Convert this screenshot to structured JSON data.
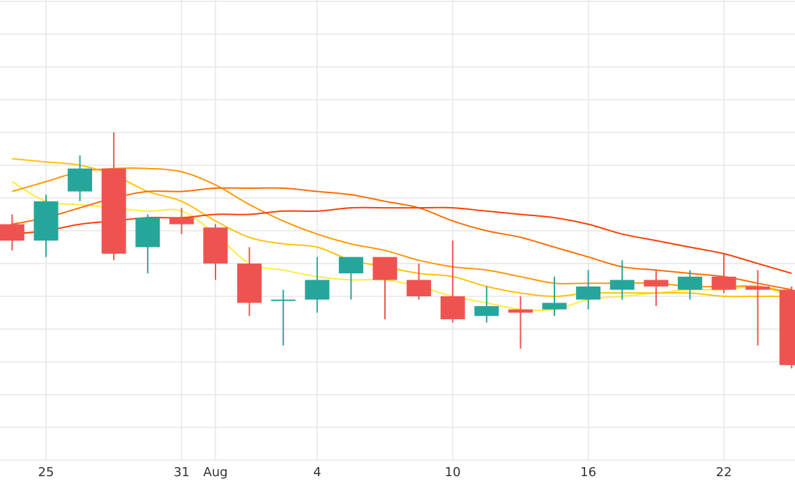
{
  "chart_data": {
    "type": "candlestick",
    "title": "",
    "xlabel": "",
    "ylabel": "",
    "ylim": [
      0,
      14
    ],
    "x_tick_labels": [
      {
        "label": "25",
        "day": 0
      },
      {
        "label": "31",
        "day": 6
      },
      {
        "label": "Aug",
        "day": 7.5
      },
      {
        "label": "4",
        "day": 12
      },
      {
        "label": "10",
        "day": 18
      },
      {
        "label": "16",
        "day": 24
      },
      {
        "label": "22",
        "day": 30
      }
    ],
    "grid": true,
    "colors": {
      "up": "#26a69a",
      "down": "#ef5350",
      "grid": "#e6e6e6",
      "ma_short": "#ffeb3b",
      "ma_mid1": "#ffc107",
      "ma_mid2": "#ff9800",
      "ma_long": "#ff6d00",
      "ma_longest": "#ff3d00"
    },
    "candles": [
      {
        "day": -1.5,
        "open": 7.2,
        "high": 7.5,
        "low": 6.4,
        "close": 6.7
      },
      {
        "day": 0,
        "open": 6.7,
        "high": 8.1,
        "low": 6.2,
        "close": 7.9
      },
      {
        "day": 1.5,
        "open": 8.2,
        "high": 9.3,
        "low": 7.9,
        "close": 8.9
      },
      {
        "day": 3,
        "open": 8.9,
        "high": 10.0,
        "low": 6.1,
        "close": 6.3
      },
      {
        "day": 4.5,
        "open": 6.5,
        "high": 7.5,
        "low": 5.7,
        "close": 7.4
      },
      {
        "day": 6,
        "open": 7.4,
        "high": 7.7,
        "low": 6.9,
        "close": 7.2
      },
      {
        "day": 7.5,
        "open": 7.1,
        "high": 7.2,
        "low": 5.5,
        "close": 6.0
      },
      {
        "day": 9,
        "open": 6.0,
        "high": 6.5,
        "low": 4.4,
        "close": 4.8
      },
      {
        "day": 10.5,
        "open": 4.9,
        "high": 5.2,
        "low": 3.5,
        "close": 4.9
      },
      {
        "day": 12,
        "open": 4.9,
        "high": 6.2,
        "low": 4.5,
        "close": 5.5
      },
      {
        "day": 13.5,
        "open": 5.7,
        "high": 6.2,
        "low": 4.9,
        "close": 6.2
      },
      {
        "day": 15,
        "open": 6.2,
        "high": 6.2,
        "low": 4.3,
        "close": 5.5
      },
      {
        "day": 16.5,
        "open": 5.5,
        "high": 6.0,
        "low": 4.9,
        "close": 5.0
      },
      {
        "day": 18,
        "open": 5.0,
        "high": 6.7,
        "low": 4.2,
        "close": 4.3
      },
      {
        "day": 19.5,
        "open": 4.4,
        "high": 5.3,
        "low": 4.2,
        "close": 4.7
      },
      {
        "day": 21,
        "open": 4.6,
        "high": 5.0,
        "low": 3.4,
        "close": 4.5
      },
      {
        "day": 22.5,
        "open": 4.6,
        "high": 5.6,
        "low": 4.4,
        "close": 4.8
      },
      {
        "day": 24,
        "open": 4.9,
        "high": 5.8,
        "low": 4.6,
        "close": 5.3
      },
      {
        "day": 25.5,
        "open": 5.2,
        "high": 6.1,
        "low": 4.9,
        "close": 5.5
      },
      {
        "day": 27,
        "open": 5.5,
        "high": 5.8,
        "low": 4.7,
        "close": 5.3
      },
      {
        "day": 28.5,
        "open": 5.2,
        "high": 5.8,
        "low": 4.9,
        "close": 5.6
      },
      {
        "day": 30,
        "open": 5.6,
        "high": 6.3,
        "low": 5.1,
        "close": 5.2
      },
      {
        "day": 31.5,
        "open": 5.3,
        "high": 5.8,
        "low": 3.5,
        "close": 5.2
      },
      {
        "day": 33,
        "open": 5.2,
        "high": 5.3,
        "low": 2.8,
        "close": 2.9
      }
    ],
    "moving_averages": [
      {
        "color_key": "ma_short",
        "points": [
          [
            -1.5,
            8.5
          ],
          [
            0,
            7.9
          ],
          [
            1.5,
            7.8
          ],
          [
            3,
            7.7
          ],
          [
            4.5,
            7.6
          ],
          [
            6,
            7.6
          ],
          [
            7.5,
            6.9
          ],
          [
            9,
            6.0
          ],
          [
            10.5,
            5.8
          ],
          [
            12,
            5.6
          ],
          [
            13.5,
            5.5
          ],
          [
            15,
            5.5
          ],
          [
            16.5,
            5.3
          ],
          [
            18,
            5.0
          ],
          [
            19.5,
            4.8
          ],
          [
            21,
            4.6
          ],
          [
            22.5,
            4.6
          ],
          [
            24,
            4.9
          ],
          [
            25.5,
            5.0
          ],
          [
            27,
            5.1
          ],
          [
            28.5,
            5.2
          ],
          [
            30,
            5.2
          ],
          [
            31.5,
            5.3
          ],
          [
            33,
            5.0
          ]
        ]
      },
      {
        "color_key": "ma_mid1",
        "points": [
          [
            -1.5,
            9.2
          ],
          [
            0,
            9.1
          ],
          [
            1.5,
            9.0
          ],
          [
            3,
            8.7
          ],
          [
            4.5,
            8.2
          ],
          [
            6,
            7.9
          ],
          [
            7.5,
            7.3
          ],
          [
            9,
            6.8
          ],
          [
            10.5,
            6.6
          ],
          [
            12,
            6.5
          ],
          [
            13.5,
            6.1
          ],
          [
            15,
            5.9
          ],
          [
            16.5,
            5.7
          ],
          [
            18,
            5.6
          ],
          [
            19.5,
            5.3
          ],
          [
            21,
            5.1
          ],
          [
            22.5,
            5.0
          ],
          [
            24,
            5.1
          ],
          [
            25.5,
            5.1
          ],
          [
            27,
            5.1
          ],
          [
            28.5,
            5.1
          ],
          [
            30,
            5.0
          ],
          [
            31.5,
            5.0
          ],
          [
            33,
            5.0
          ]
        ]
      },
      {
        "color_key": "ma_mid2",
        "points": [
          [
            -1.5,
            8.2
          ],
          [
            0,
            8.5
          ],
          [
            1.5,
            8.8
          ],
          [
            3,
            8.9
          ],
          [
            4.5,
            8.9
          ],
          [
            6,
            8.8
          ],
          [
            7.5,
            8.4
          ],
          [
            9,
            7.8
          ],
          [
            10.5,
            7.3
          ],
          [
            12,
            6.9
          ],
          [
            13.5,
            6.6
          ],
          [
            15,
            6.4
          ],
          [
            16.5,
            6.1
          ],
          [
            18,
            5.9
          ],
          [
            19.5,
            5.8
          ],
          [
            21,
            5.6
          ],
          [
            22.5,
            5.4
          ],
          [
            24,
            5.4
          ],
          [
            25.5,
            5.4
          ],
          [
            27,
            5.4
          ],
          [
            28.5,
            5.3
          ],
          [
            30,
            5.3
          ],
          [
            31.5,
            5.3
          ],
          [
            33,
            5.1
          ]
        ]
      },
      {
        "color_key": "ma_long",
        "points": [
          [
            -1.5,
            7.2
          ],
          [
            0,
            7.4
          ],
          [
            1.5,
            7.7
          ],
          [
            3,
            8.0
          ],
          [
            4.5,
            8.2
          ],
          [
            6,
            8.2
          ],
          [
            7.5,
            8.3
          ],
          [
            9,
            8.3
          ],
          [
            10.5,
            8.3
          ],
          [
            12,
            8.2
          ],
          [
            13.5,
            8.1
          ],
          [
            15,
            7.9
          ],
          [
            16.5,
            7.7
          ],
          [
            18,
            7.3
          ],
          [
            19.5,
            7.0
          ],
          [
            21,
            6.8
          ],
          [
            22.5,
            6.5
          ],
          [
            24,
            6.2
          ],
          [
            25.5,
            5.9
          ],
          [
            27,
            5.8
          ],
          [
            28.5,
            5.7
          ],
          [
            30,
            5.6
          ],
          [
            31.5,
            5.4
          ],
          [
            33,
            5.2
          ]
        ]
      },
      {
        "color_key": "ma_longest",
        "points": [
          [
            -1.5,
            6.9
          ],
          [
            0,
            7.0
          ],
          [
            1.5,
            7.2
          ],
          [
            3,
            7.3
          ],
          [
            4.5,
            7.4
          ],
          [
            6,
            7.4
          ],
          [
            7.5,
            7.5
          ],
          [
            9,
            7.5
          ],
          [
            10.5,
            7.6
          ],
          [
            12,
            7.6
          ],
          [
            13.5,
            7.7
          ],
          [
            15,
            7.7
          ],
          [
            16.5,
            7.7
          ],
          [
            18,
            7.7
          ],
          [
            19.5,
            7.6
          ],
          [
            21,
            7.5
          ],
          [
            22.5,
            7.4
          ],
          [
            24,
            7.2
          ],
          [
            25.5,
            6.9
          ],
          [
            27,
            6.7
          ],
          [
            28.5,
            6.5
          ],
          [
            30,
            6.3
          ],
          [
            31.5,
            6.0
          ],
          [
            33,
            5.7
          ]
        ]
      }
    ]
  }
}
